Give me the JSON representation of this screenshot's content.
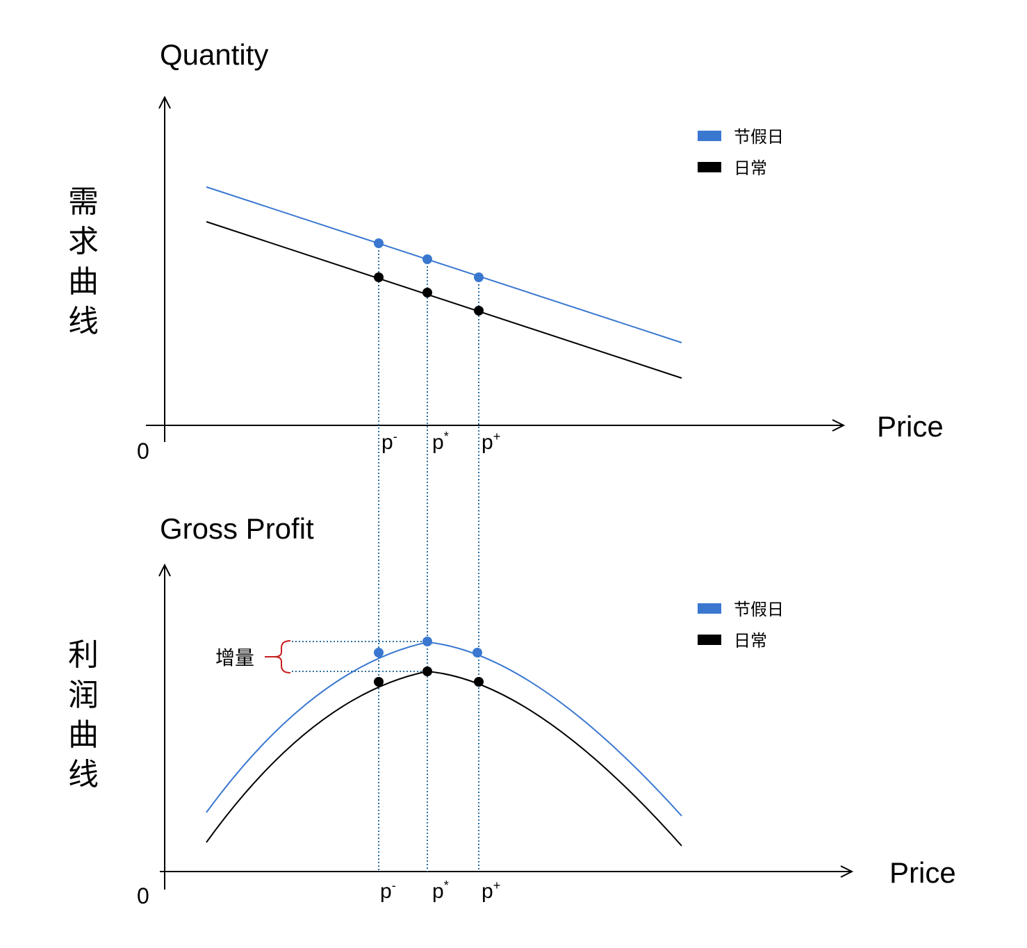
{
  "colors": {
    "holiday": "#3a78d0",
    "normal": "#000000",
    "guide": "#2b6ea0",
    "increment": "#c81e1e"
  },
  "demand_panel": {
    "title": "Quantity",
    "vertical_label": [
      "需",
      "求",
      "曲",
      "线"
    ],
    "x_axis_label": "Price",
    "origin_label": "0",
    "ticks": [
      {
        "base": "p",
        "sup": "-"
      },
      {
        "base": "p",
        "sup": "*"
      },
      {
        "base": "p",
        "sup": "+"
      }
    ],
    "legend": [
      {
        "label": "节假日",
        "color": "#3a78d0"
      },
      {
        "label": "日常",
        "color": "#000000"
      }
    ]
  },
  "profit_panel": {
    "title": "Gross Profit",
    "vertical_label": [
      "利",
      "润",
      "曲",
      "线"
    ],
    "x_axis_label": "Price",
    "origin_label": "0",
    "ticks": [
      {
        "base": "p",
        "sup": "-"
      },
      {
        "base": "p",
        "sup": "*"
      },
      {
        "base": "p",
        "sup": "+"
      }
    ],
    "legend": [
      {
        "label": "节假日",
        "color": "#3a78d0"
      },
      {
        "label": "日常",
        "color": "#000000"
      }
    ],
    "annotation": "增量"
  },
  "chart_data": [
    {
      "type": "line",
      "ylabel": "Quantity",
      "xlabel": "Price",
      "series": [
        {
          "name": "节假日",
          "points": [
            [
              0.1,
              0.72
            ],
            [
              0.43,
              0.6
            ],
            [
              0.53,
              0.56
            ],
            [
              0.63,
              0.52
            ],
            [
              1.0,
              0.38
            ]
          ]
        },
        {
          "name": "日常",
          "points": [
            [
              0.1,
              0.6
            ],
            [
              0.43,
              0.48
            ],
            [
              0.53,
              0.44
            ],
            [
              0.63,
              0.4
            ],
            [
              1.0,
              0.26
            ]
          ]
        }
      ],
      "markers_at": [
        "p-",
        "p*",
        "p+"
      ]
    },
    {
      "type": "line",
      "ylabel": "Gross Profit",
      "xlabel": "Price",
      "series": [
        {
          "name": "节假日",
          "shape": "concave",
          "peak_at": "p*",
          "peak": 0.78,
          "markers": [
            0.74,
            0.78,
            0.74
          ]
        },
        {
          "name": "日常",
          "shape": "concave",
          "peak_at": "p*",
          "peak": 0.68,
          "markers": [
            0.64,
            0.68,
            0.64
          ]
        }
      ],
      "annotation": "增量"
    }
  ]
}
